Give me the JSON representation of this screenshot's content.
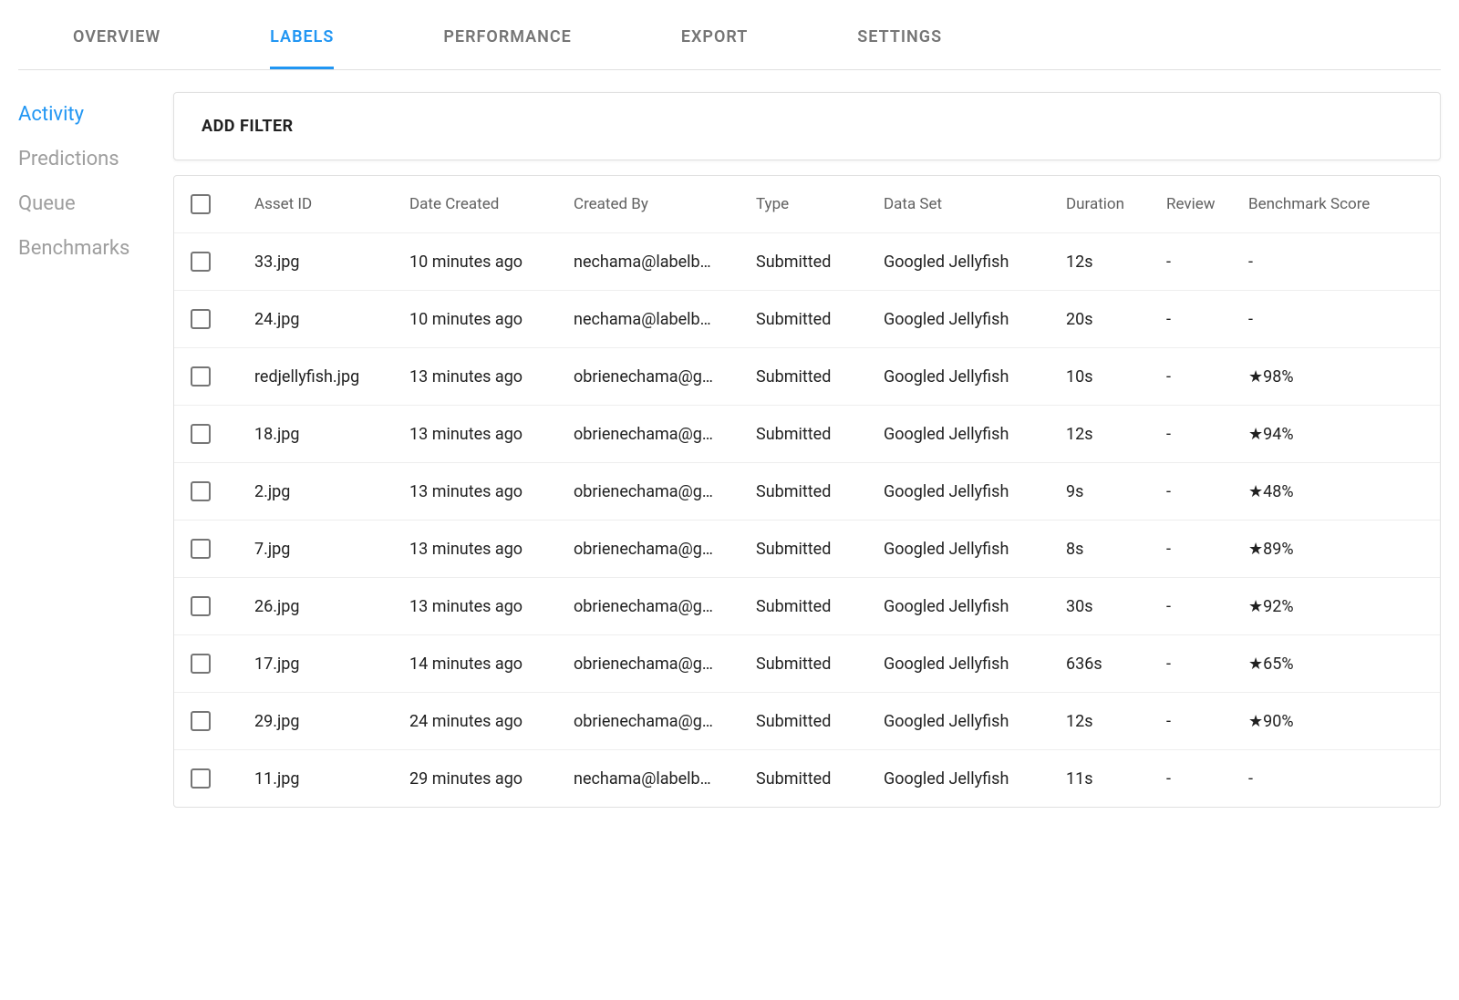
{
  "colors": {
    "accent": "#2196f3",
    "text": "#212121",
    "muted": "#757575",
    "sidebar_inactive": "#9e9e9e",
    "border": "#e0e0e0",
    "row_border": "#eeeeee"
  },
  "topnav": {
    "tabs": [
      {
        "label": "OVERVIEW",
        "active": false
      },
      {
        "label": "LABELS",
        "active": true
      },
      {
        "label": "PERFORMANCE",
        "active": false
      },
      {
        "label": "EXPORT",
        "active": false
      },
      {
        "label": "SETTINGS",
        "active": false
      }
    ]
  },
  "sidebar": {
    "items": [
      {
        "label": "Activity",
        "active": true
      },
      {
        "label": "Predictions",
        "active": false
      },
      {
        "label": "Queue",
        "active": false
      },
      {
        "label": "Benchmarks",
        "active": false
      }
    ]
  },
  "filter": {
    "add_label": "ADD FILTER"
  },
  "table": {
    "headers": {
      "asset_id": "Asset ID",
      "date_created": "Date Created",
      "created_by": "Created By",
      "type": "Type",
      "data_set": "Data Set",
      "duration": "Duration",
      "review": "Review",
      "benchmark": "Benchmark Score"
    },
    "rows": [
      {
        "asset_id": "33.jpg",
        "date_created": "10 minutes ago",
        "created_by": "nechama@labelb…",
        "type": "Submitted",
        "data_set": "Googled Jellyfish",
        "duration": "12s",
        "review": "-",
        "benchmark": "-"
      },
      {
        "asset_id": "24.jpg",
        "date_created": "10 minutes ago",
        "created_by": "nechama@labelb…",
        "type": "Submitted",
        "data_set": "Googled Jellyfish",
        "duration": "20s",
        "review": "-",
        "benchmark": "-"
      },
      {
        "asset_id": "redjellyfish.jpg",
        "date_created": "13 minutes ago",
        "created_by": "obrienechama@g…",
        "type": "Submitted",
        "data_set": "Googled Jellyfish",
        "duration": "10s",
        "review": "-",
        "benchmark": "★98%"
      },
      {
        "asset_id": "18.jpg",
        "date_created": "13 minutes ago",
        "created_by": "obrienechama@g…",
        "type": "Submitted",
        "data_set": "Googled Jellyfish",
        "duration": "12s",
        "review": "-",
        "benchmark": "★94%"
      },
      {
        "asset_id": "2.jpg",
        "date_created": "13 minutes ago",
        "created_by": "obrienechama@g…",
        "type": "Submitted",
        "data_set": "Googled Jellyfish",
        "duration": "9s",
        "review": "-",
        "benchmark": "★48%"
      },
      {
        "asset_id": "7.jpg",
        "date_created": "13 minutes ago",
        "created_by": "obrienechama@g…",
        "type": "Submitted",
        "data_set": "Googled Jellyfish",
        "duration": "8s",
        "review": "-",
        "benchmark": "★89%"
      },
      {
        "asset_id": "26.jpg",
        "date_created": "13 minutes ago",
        "created_by": "obrienechama@g…",
        "type": "Submitted",
        "data_set": "Googled Jellyfish",
        "duration": "30s",
        "review": "-",
        "benchmark": "★92%"
      },
      {
        "asset_id": "17.jpg",
        "date_created": "14 minutes ago",
        "created_by": "obrienechama@g…",
        "type": "Submitted",
        "data_set": "Googled Jellyfish",
        "duration": "636s",
        "review": "-",
        "benchmark": "★65%"
      },
      {
        "asset_id": "29.jpg",
        "date_created": "24 minutes ago",
        "created_by": "obrienechama@g…",
        "type": "Submitted",
        "data_set": "Googled Jellyfish",
        "duration": "12s",
        "review": "-",
        "benchmark": "★90%"
      },
      {
        "asset_id": "11.jpg",
        "date_created": "29 minutes ago",
        "created_by": "nechama@labelb…",
        "type": "Submitted",
        "data_set": "Googled Jellyfish",
        "duration": "11s",
        "review": "-",
        "benchmark": "-"
      }
    ]
  }
}
